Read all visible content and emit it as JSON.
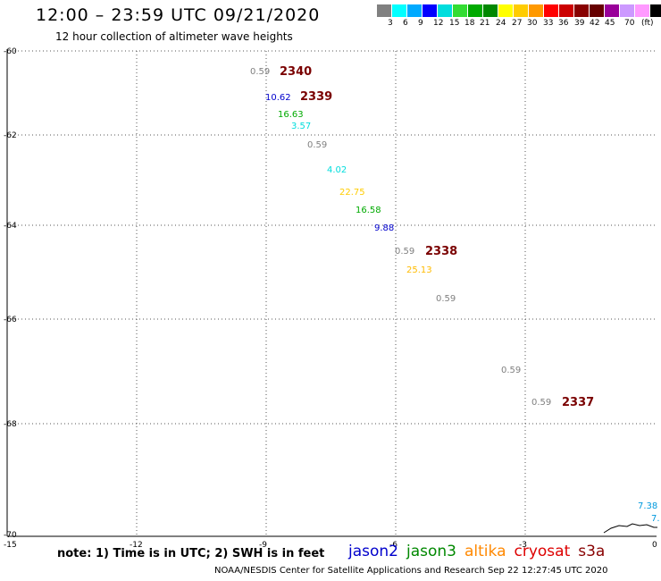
{
  "title": "12:00 – 23:59 UTC 09/21/2020",
  "subtitle": "12 hour collection of altimeter wave heights",
  "colorbar": {
    "colors": [
      "#808080",
      "#00ffff",
      "#00aaff",
      "#0000ff",
      "#00dddd",
      "#33dd33",
      "#00aa00",
      "#008800",
      "#ffff00",
      "#ffcc00",
      "#ff9900",
      "#ff0000",
      "#cc0000",
      "#880000",
      "#660000",
      "#990099",
      "#cc99ff",
      "#ff99ff",
      "#000000"
    ],
    "labels": [
      "3",
      "6",
      "9",
      "12",
      "15",
      "18",
      "21",
      "24",
      "27",
      "30",
      "33",
      "36",
      "39",
      "42",
      "45",
      "70",
      "(ft)"
    ]
  },
  "axes": {
    "y_ticks": [
      "-60",
      "-62",
      "-64",
      "-66",
      "-68",
      "-70"
    ],
    "x_ticks": [
      "-15",
      "-12",
      "-9",
      "-6",
      "-3",
      "0"
    ]
  },
  "observations": [
    {
      "text": "0.59",
      "color": "#808080"
    },
    {
      "text": "2340",
      "color": "#7a0000",
      "big": true
    },
    {
      "text": "10.62",
      "color": "#0000cc"
    },
    {
      "text": "2339",
      "color": "#7a0000",
      "big": true
    },
    {
      "text": "16.63",
      "color": "#00aa00"
    },
    {
      "text": "3.57",
      "color": "#00dddd"
    },
    {
      "text": "0.59",
      "color": "#808080"
    },
    {
      "text": "4.02",
      "color": "#00dddd"
    },
    {
      "text": "22.75",
      "color": "#ffcc00"
    },
    {
      "text": "16.58",
      "color": "#00aa00"
    },
    {
      "text": "9.88",
      "color": "#0000cc"
    },
    {
      "text": "0.59",
      "color": "#808080"
    },
    {
      "text": "2338",
      "color": "#7a0000",
      "big": true
    },
    {
      "text": "25.13",
      "color": "#ffbb00"
    },
    {
      "text": "0.59",
      "color": "#808080"
    },
    {
      "text": "0.59",
      "color": "#808080"
    },
    {
      "text": "0.59",
      "color": "#808080"
    },
    {
      "text": "2337",
      "color": "#7a0000",
      "big": true
    },
    {
      "text": "7.38",
      "color": "#0099dd"
    },
    {
      "text": "7.",
      "color": "#0099dd"
    }
  ],
  "note": "note: 1) Time is in UTC; 2) SWH is in feet",
  "satellites": [
    {
      "name": "jason2",
      "color": "#0000cc"
    },
    {
      "name": "jason3",
      "color": "#008800"
    },
    {
      "name": "altika",
      "color": "#ff8800"
    },
    {
      "name": "cryosat",
      "color": "#dd0000"
    },
    {
      "name": "s3a",
      "color": "#880000"
    }
  ],
  "footer": "NOAA/NESDIS Center for Satellite Applications and Research    Sep 22 12:27:45 UTC 2020"
}
